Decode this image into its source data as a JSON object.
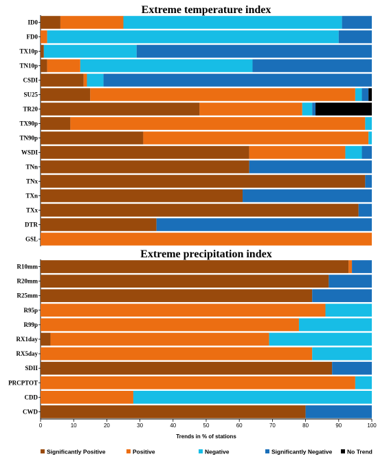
{
  "chart_data": [
    {
      "type": "bar",
      "orientation": "horizontal",
      "stacked": true,
      "title": "Extreme temperature index",
      "categories": [
        "ID0",
        "FD0",
        "TX10p",
        "TN10p",
        "CSDI",
        "SU25",
        "TR20",
        "TX90p",
        "TN90p",
        "WSDI",
        "TNn",
        "TNx",
        "TXn",
        "TXx",
        "DTR",
        "GSL"
      ],
      "series": [
        {
          "name": "Significantly Positive",
          "values": [
            6,
            0,
            1,
            2,
            13,
            15,
            48,
            9,
            31,
            63,
            63,
            98,
            61,
            96,
            35,
            0
          ]
        },
        {
          "name": "Positive",
          "values": [
            19,
            2,
            0,
            10,
            1,
            80,
            31,
            89,
            68,
            29,
            0,
            0,
            0,
            0,
            0,
            100
          ]
        },
        {
          "name": "Negative",
          "values": [
            66,
            88,
            28,
            52,
            5,
            2,
            3,
            2,
            1,
            5,
            0,
            0,
            0,
            0,
            0,
            0
          ]
        },
        {
          "name": "Significantly Negative",
          "values": [
            9,
            10,
            71,
            36,
            81,
            2,
            1,
            0,
            0,
            3,
            37,
            2,
            39,
            4,
            65,
            0
          ]
        },
        {
          "name": "No Trend",
          "values": [
            0,
            0,
            0,
            0,
            0,
            1,
            17,
            0,
            0,
            0,
            0,
            0,
            0,
            0,
            0,
            0
          ]
        }
      ],
      "xlim": [
        0,
        100
      ]
    },
    {
      "type": "bar",
      "orientation": "horizontal",
      "stacked": true,
      "title": "Extreme precipitation index",
      "categories": [
        "R10mm",
        "R20mm",
        "R25mm",
        "R95p",
        "R99p",
        "RX1day",
        "RX5day",
        "SDII",
        "PRCPTOT",
        "CDD",
        "CWD"
      ],
      "series": [
        {
          "name": "Significantly Positive",
          "values": [
            93,
            87,
            82,
            0,
            0,
            3,
            0,
            88,
            0,
            0,
            80
          ]
        },
        {
          "name": "Positive",
          "values": [
            1,
            0,
            0,
            86,
            78,
            66,
            82,
            0,
            95,
            28,
            0
          ]
        },
        {
          "name": "Negative",
          "values": [
            0,
            0,
            0,
            14,
            22,
            31,
            18,
            0,
            5,
            72,
            0
          ]
        },
        {
          "name": "Significantly Negative",
          "values": [
            6,
            13,
            18,
            0,
            0,
            0,
            0,
            12,
            0,
            0,
            20
          ]
        },
        {
          "name": "No Trend",
          "values": [
            0,
            0,
            0,
            0,
            0,
            0,
            0,
            0,
            0,
            0,
            0
          ]
        }
      ],
      "xlim": [
        0,
        100
      ],
      "xticks": [
        0,
        10,
        20,
        30,
        40,
        50,
        60,
        70,
        80,
        90,
        100
      ],
      "xlabel": "Trends in % of stations"
    }
  ],
  "colors": {
    "Significantly Positive": "#994a0c",
    "Positive": "#ec6e12",
    "Negative": "#17bde6",
    "Significantly Negative": "#1a6fb9",
    "No Trend": "#000000"
  },
  "legend": {
    "placement": "bottom",
    "items": [
      "Significantly Positive",
      "Positive",
      "Negative",
      "Significantly Negative",
      "No Trend"
    ]
  }
}
